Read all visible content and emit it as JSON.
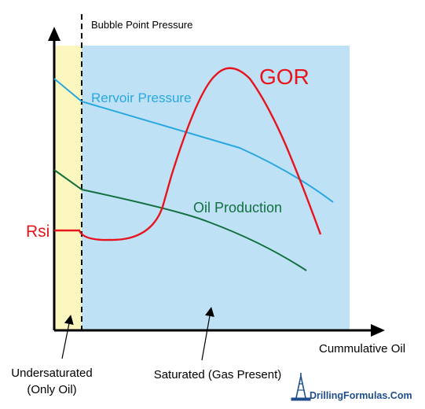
{
  "diagram": {
    "bubble_point_label": "Bubble Point Pressure",
    "x_axis_label": "Cummulative Oil",
    "rsi_label": "Rsi",
    "curves": {
      "gor": {
        "label": "GOR",
        "color": "#e8141c"
      },
      "reservoir_pressure": {
        "label": "Rervoir Pressure",
        "color": "#29a8e0"
      },
      "oil_production": {
        "label": "Oil Production",
        "color": "#12703f"
      }
    },
    "regions": {
      "undersaturated": {
        "label_line1": "Undersaturated",
        "label_line2": "(Only Oil)",
        "color": "#fcf6bf"
      },
      "saturated": {
        "label": "Saturated (Gas Present)",
        "color": "#bfe1f6"
      }
    }
  },
  "brand": {
    "text": "DrillingFormulas.Com",
    "color": "#1f4e8c"
  }
}
